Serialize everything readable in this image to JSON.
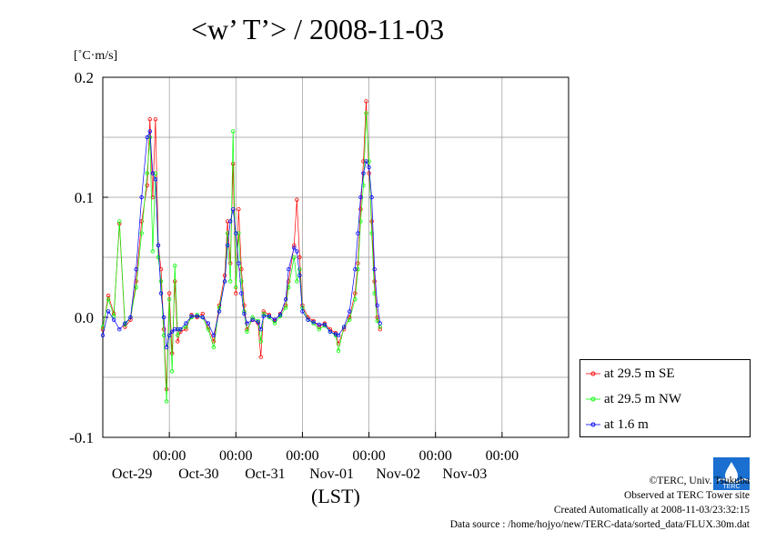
{
  "title": "<w’ T’> / 2008-11-03",
  "unit_label": "[˚C·m/s]",
  "x_axis_label": "(LST)",
  "legend": [
    {
      "label": "at 29.5 m SE",
      "color": "#ff0000"
    },
    {
      "label": "at 29.5 m NW",
      "color": "#00ff00"
    },
    {
      "label": "at 1.6 m",
      "color": "#0000ff"
    }
  ],
  "footer": {
    "copyright": "©TERC, Univ. Tsukuba",
    "observed": "Observed at TERC Tower site",
    "created": "Created Automatically at 2008-11-03/23:32:15",
    "source": "Data source : /home/hojyo/new/TERC-data/sorted_data/FLUX.30m.dat"
  },
  "logo_text": "TERC",
  "chart_data": {
    "type": "line",
    "title": "<w’ T’> / 2008-11-03",
    "ylabel": "[˚C·m/s]",
    "xlabel": "(LST)",
    "ylim": [
      -0.1,
      0.2
    ],
    "y_ticks": [
      -0.1,
      0.0,
      0.1,
      0.2
    ],
    "y_tick_labels": [
      "-0.1",
      "0.0",
      "0.1",
      "0.2"
    ],
    "x_range_days": [
      "2008-10-28T00:00",
      "2008-11-04T00:00"
    ],
    "x_ticks": [
      {
        "date": "2008-10-29T00:00",
        "time": "00:00",
        "day": "Oct-29"
      },
      {
        "date": "2008-10-30T00:00",
        "time": "00:00",
        "day": "Oct-30"
      },
      {
        "date": "2008-10-31T00:00",
        "time": "00:00",
        "day": "Oct-31"
      },
      {
        "date": "2008-11-01T00:00",
        "time": "00:00",
        "day": "Nov-01"
      },
      {
        "date": "2008-11-02T00:00",
        "time": "00:00",
        "day": "Nov-02"
      },
      {
        "date": "2008-11-03T00:00",
        "time": "00:00",
        "day": "Nov-03"
      }
    ],
    "grid": true,
    "legend_position": "bottom-right outside",
    "series": [
      {
        "name": "at 29.5 m SE",
        "color": "#ff0000",
        "points": [
          [
            "2008-10-28T00:00",
            -0.01
          ],
          [
            "2008-10-28T02:00",
            0.018
          ],
          [
            "2008-10-28T04:00",
            0.003
          ],
          [
            "2008-10-28T06:00",
            0.078
          ],
          [
            "2008-10-28T08:00",
            -0.008
          ],
          [
            "2008-10-28T10:00",
            -0.002
          ],
          [
            "2008-10-28T12:00",
            0.03
          ],
          [
            "2008-10-28T14:00",
            0.08
          ],
          [
            "2008-10-28T16:00",
            0.11
          ],
          [
            "2008-10-28T17:00",
            0.165
          ],
          [
            "2008-10-28T18:00",
            0.1
          ],
          [
            "2008-10-28T19:00",
            0.165
          ],
          [
            "2008-10-28T20:00",
            0.06
          ],
          [
            "2008-10-28T21:00",
            0.04
          ],
          [
            "2008-10-28T22:00",
            -0.01
          ],
          [
            "2008-10-28T23:00",
            -0.06
          ],
          [
            "2008-10-29T00:00",
            0.02
          ],
          [
            "2008-10-29T01:00",
            -0.03
          ],
          [
            "2008-10-29T02:00",
            0.03
          ],
          [
            "2008-10-29T03:00",
            -0.02
          ],
          [
            "2008-10-29T04:00",
            -0.012
          ],
          [
            "2008-10-29T06:00",
            -0.01
          ],
          [
            "2008-10-29T08:00",
            0.002
          ],
          [
            "2008-10-29T10:00",
            0.0
          ],
          [
            "2008-10-29T12:00",
            0.003
          ],
          [
            "2008-10-29T14:00",
            -0.008
          ],
          [
            "2008-10-29T16:00",
            -0.02
          ],
          [
            "2008-10-29T18:00",
            0.01
          ],
          [
            "2008-10-29T20:00",
            0.035
          ],
          [
            "2008-10-29T21:00",
            0.08
          ],
          [
            "2008-10-29T22:00",
            0.045
          ],
          [
            "2008-10-29T23:00",
            0.128
          ],
          [
            "2008-10-30T00:00",
            0.02
          ],
          [
            "2008-10-30T01:00",
            0.09
          ],
          [
            "2008-10-30T02:00",
            0.04
          ],
          [
            "2008-10-30T03:00",
            0.01
          ],
          [
            "2008-10-30T04:00",
            -0.01
          ],
          [
            "2008-10-30T06:00",
            -0.002
          ],
          [
            "2008-10-30T08:00",
            -0.005
          ],
          [
            "2008-10-30T09:00",
            -0.033
          ],
          [
            "2008-10-30T10:00",
            0.005
          ],
          [
            "2008-10-30T12:00",
            0.002
          ],
          [
            "2008-10-30T14:00",
            -0.003
          ],
          [
            "2008-10-30T16:00",
            0.003
          ],
          [
            "2008-10-30T18:00",
            0.01
          ],
          [
            "2008-10-30T19:00",
            0.03
          ],
          [
            "2008-10-30T21:00",
            0.06
          ],
          [
            "2008-10-30T22:00",
            0.098
          ],
          [
            "2008-10-30T23:00",
            0.05
          ],
          [
            "2008-10-31T00:00",
            0.01
          ],
          [
            "2008-10-31T02:00",
            0.0
          ],
          [
            "2008-10-31T04:00",
            -0.003
          ],
          [
            "2008-10-31T06:00",
            -0.008
          ],
          [
            "2008-10-31T08:00",
            -0.005
          ],
          [
            "2008-10-31T10:00",
            -0.01
          ],
          [
            "2008-10-31T12:00",
            -0.013
          ],
          [
            "2008-10-31T13:00",
            -0.022
          ],
          [
            "2008-10-31T15:00",
            -0.01
          ],
          [
            "2008-10-31T17:00",
            0.0
          ],
          [
            "2008-10-31T19:00",
            0.02
          ],
          [
            "2008-10-31T20:00",
            0.045
          ],
          [
            "2008-10-31T21:00",
            0.09
          ],
          [
            "2008-10-31T22:00",
            0.13
          ],
          [
            "2008-10-31T23:00",
            0.18
          ],
          [
            "2008-11-01T00:00",
            0.12
          ],
          [
            "2008-11-01T01:00",
            0.08
          ],
          [
            "2008-11-01T02:00",
            0.03
          ],
          [
            "2008-11-01T03:00",
            0.0
          ],
          [
            "2008-11-01T04:00",
            -0.01
          ]
        ]
      },
      {
        "name": "at 29.5 m NW",
        "color": "#00ff00",
        "points": [
          [
            "2008-10-28T00:00",
            -0.008
          ],
          [
            "2008-10-28T02:00",
            0.015
          ],
          [
            "2008-10-28T04:00",
            0.001
          ],
          [
            "2008-10-28T06:00",
            0.08
          ],
          [
            "2008-10-28T08:00",
            -0.006
          ],
          [
            "2008-10-28T10:00",
            0.0
          ],
          [
            "2008-10-28T12:00",
            0.025
          ],
          [
            "2008-10-28T14:00",
            0.07
          ],
          [
            "2008-10-28T16:00",
            0.12
          ],
          [
            "2008-10-28T17:00",
            0.15
          ],
          [
            "2008-10-28T18:00",
            0.055
          ],
          [
            "2008-10-28T19:00",
            0.12
          ],
          [
            "2008-10-28T20:00",
            0.05
          ],
          [
            "2008-10-28T21:00",
            0.03
          ],
          [
            "2008-10-28T22:00",
            -0.015
          ],
          [
            "2008-10-28T23:00",
            -0.07
          ],
          [
            "2008-10-29T00:00",
            0.015
          ],
          [
            "2008-10-29T01:00",
            -0.045
          ],
          [
            "2008-10-29T02:00",
            0.043
          ],
          [
            "2008-10-29T03:00",
            -0.015
          ],
          [
            "2008-10-29T04:00",
            -0.01
          ],
          [
            "2008-10-29T06:00",
            -0.008
          ],
          [
            "2008-10-29T08:00",
            0.0
          ],
          [
            "2008-10-29T10:00",
            0.002
          ],
          [
            "2008-10-29T12:00",
            0.0
          ],
          [
            "2008-10-29T14:00",
            -0.01
          ],
          [
            "2008-10-29T16:00",
            -0.025
          ],
          [
            "2008-10-29T18:00",
            0.008
          ],
          [
            "2008-10-29T20:00",
            0.03
          ],
          [
            "2008-10-29T21:00",
            0.07
          ],
          [
            "2008-10-29T22:00",
            0.03
          ],
          [
            "2008-10-29T23:00",
            0.155
          ],
          [
            "2008-10-30T00:00",
            0.025
          ],
          [
            "2008-10-30T01:00",
            0.07
          ],
          [
            "2008-10-30T02:00",
            0.03
          ],
          [
            "2008-10-30T03:00",
            0.005
          ],
          [
            "2008-10-30T04:00",
            -0.012
          ],
          [
            "2008-10-30T06:00",
            0.0
          ],
          [
            "2008-10-30T08:00",
            -0.003
          ],
          [
            "2008-10-30T09:00",
            -0.02
          ],
          [
            "2008-10-30T10:00",
            0.003
          ],
          [
            "2008-10-30T12:00",
            0.0
          ],
          [
            "2008-10-30T14:00",
            -0.005
          ],
          [
            "2008-10-30T16:00",
            0.001
          ],
          [
            "2008-10-30T18:00",
            0.008
          ],
          [
            "2008-10-30T19:00",
            0.025
          ],
          [
            "2008-10-30T21:00",
            0.05
          ],
          [
            "2008-10-30T22:00",
            0.03
          ],
          [
            "2008-10-30T23:00",
            0.04
          ],
          [
            "2008-10-31T00:00",
            0.008
          ],
          [
            "2008-10-31T02:00",
            -0.002
          ],
          [
            "2008-10-31T04:00",
            -0.005
          ],
          [
            "2008-10-31T06:00",
            -0.01
          ],
          [
            "2008-10-31T08:00",
            -0.007
          ],
          [
            "2008-10-31T10:00",
            -0.012
          ],
          [
            "2008-10-31T12:00",
            -0.015
          ],
          [
            "2008-10-31T13:00",
            -0.028
          ],
          [
            "2008-10-31T15:00",
            -0.008
          ],
          [
            "2008-10-31T17:00",
            -0.002
          ],
          [
            "2008-10-31T19:00",
            0.015
          ],
          [
            "2008-10-31T20:00",
            0.04
          ],
          [
            "2008-10-31T21:00",
            0.08
          ],
          [
            "2008-10-31T22:00",
            0.11
          ],
          [
            "2008-10-31T23:00",
            0.17
          ],
          [
            "2008-11-01T00:00",
            0.13
          ],
          [
            "2008-11-01T01:00",
            0.07
          ],
          [
            "2008-11-01T02:00",
            0.02
          ],
          [
            "2008-11-01T03:00",
            -0.003
          ],
          [
            "2008-11-01T04:00",
            -0.008
          ]
        ]
      },
      {
        "name": "at 1.6 m",
        "color": "#0000ff",
        "points": [
          [
            "2008-10-28T00:00",
            -0.015
          ],
          [
            "2008-10-28T02:00",
            0.005
          ],
          [
            "2008-10-28T04:00",
            -0.002
          ],
          [
            "2008-10-28T06:00",
            -0.01
          ],
          [
            "2008-10-28T08:00",
            -0.005
          ],
          [
            "2008-10-28T10:00",
            0.0
          ],
          [
            "2008-10-28T12:00",
            0.04
          ],
          [
            "2008-10-28T14:00",
            0.1
          ],
          [
            "2008-10-28T16:00",
            0.15
          ],
          [
            "2008-10-28T17:00",
            0.155
          ],
          [
            "2008-10-28T18:00",
            0.12
          ],
          [
            "2008-10-28T19:00",
            0.115
          ],
          [
            "2008-10-28T20:00",
            0.06
          ],
          [
            "2008-10-28T21:00",
            0.02
          ],
          [
            "2008-10-28T22:00",
            0.0
          ],
          [
            "2008-10-28T23:00",
            -0.025
          ],
          [
            "2008-10-29T00:00",
            -0.015
          ],
          [
            "2008-10-29T01:00",
            -0.012
          ],
          [
            "2008-10-29T02:00",
            -0.01
          ],
          [
            "2008-10-29T03:00",
            -0.01
          ],
          [
            "2008-10-29T04:00",
            -0.01
          ],
          [
            "2008-10-29T06:00",
            -0.005
          ],
          [
            "2008-10-29T08:00",
            0.001
          ],
          [
            "2008-10-29T10:00",
            0.001
          ],
          [
            "2008-10-29T12:00",
            0.0
          ],
          [
            "2008-10-29T14:00",
            -0.005
          ],
          [
            "2008-10-29T16:00",
            -0.015
          ],
          [
            "2008-10-29T18:00",
            0.005
          ],
          [
            "2008-10-29T20:00",
            0.03
          ],
          [
            "2008-10-29T21:00",
            0.06
          ],
          [
            "2008-10-29T22:00",
            0.08
          ],
          [
            "2008-10-29T23:00",
            0.09
          ],
          [
            "2008-10-30T00:00",
            0.07
          ],
          [
            "2008-10-30T01:00",
            0.045
          ],
          [
            "2008-10-30T02:00",
            0.02
          ],
          [
            "2008-10-30T03:00",
            0.003
          ],
          [
            "2008-10-30T04:00",
            -0.005
          ],
          [
            "2008-10-30T06:00",
            -0.002
          ],
          [
            "2008-10-30T08:00",
            -0.004
          ],
          [
            "2008-10-30T09:00",
            -0.01
          ],
          [
            "2008-10-30T10:00",
            0.001
          ],
          [
            "2008-10-30T12:00",
            0.001
          ],
          [
            "2008-10-30T14:00",
            -0.002
          ],
          [
            "2008-10-30T16:00",
            0.002
          ],
          [
            "2008-10-30T18:00",
            0.015
          ],
          [
            "2008-10-30T19:00",
            0.04
          ],
          [
            "2008-10-30T21:00",
            0.058
          ],
          [
            "2008-10-30T22:00",
            0.055
          ],
          [
            "2008-10-30T23:00",
            0.035
          ],
          [
            "2008-10-31T00:00",
            0.005
          ],
          [
            "2008-10-31T02:00",
            -0.002
          ],
          [
            "2008-10-31T04:00",
            -0.004
          ],
          [
            "2008-10-31T06:00",
            -0.006
          ],
          [
            "2008-10-31T08:00",
            -0.006
          ],
          [
            "2008-10-31T10:00",
            -0.012
          ],
          [
            "2008-10-31T12:00",
            -0.014
          ],
          [
            "2008-10-31T13:00",
            -0.015
          ],
          [
            "2008-10-31T15:00",
            -0.008
          ],
          [
            "2008-10-31T17:00",
            0.005
          ],
          [
            "2008-10-31T19:00",
            0.04
          ],
          [
            "2008-10-31T20:00",
            0.07
          ],
          [
            "2008-10-31T21:00",
            0.1
          ],
          [
            "2008-10-31T22:00",
            0.12
          ],
          [
            "2008-10-31T23:00",
            0.13
          ],
          [
            "2008-11-01T00:00",
            0.125
          ],
          [
            "2008-11-01T01:00",
            0.1
          ],
          [
            "2008-11-01T02:00",
            0.04
          ],
          [
            "2008-11-01T03:00",
            0.01
          ],
          [
            "2008-11-01T04:00",
            -0.005
          ]
        ]
      }
    ]
  }
}
